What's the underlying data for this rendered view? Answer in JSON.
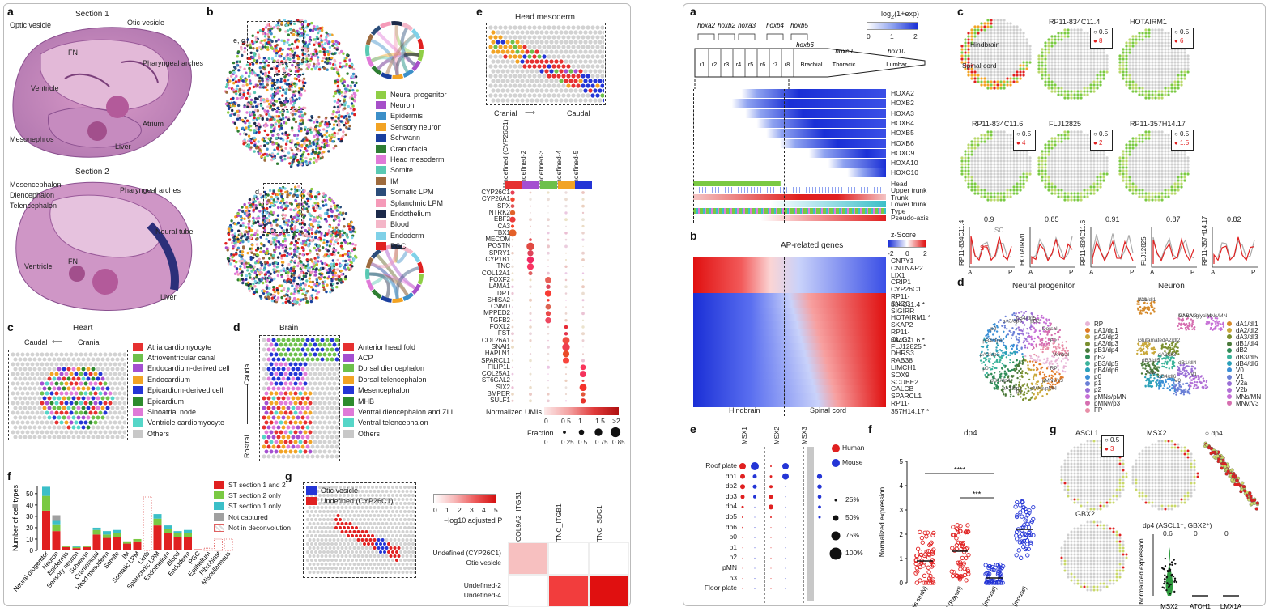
{
  "left_figure": {
    "panel_a": {
      "label": "a",
      "section1_title": "Section 1",
      "section1_labels": [
        "Optic vesicle",
        "Otic vesicle",
        "FN",
        "Pharyngeal arches",
        "Ventricle",
        "Atrium",
        "Mesonephros",
        "Liver"
      ],
      "section2_title": "Section 2",
      "section2_labels": [
        "Mesencephalon",
        "Diencephalon",
        "Telencephalon",
        "Pharyngeal arches",
        "FN",
        "Ventricle",
        "Neural tube",
        "Liver"
      ]
    },
    "panel_b": {
      "label": "b",
      "box_label_1": "e, g",
      "box_label_2": "c",
      "box_label_3": "d",
      "legend": [
        {
          "name": "Neural progenitor",
          "color": "#8fce45"
        },
        {
          "name": "Neuron",
          "color": "#a64fc9"
        },
        {
          "name": "Epidermis",
          "color": "#3c8fc8"
        },
        {
          "name": "Sensory neuron",
          "color": "#f2a324"
        },
        {
          "name": "Schwann",
          "color": "#1a3f9e"
        },
        {
          "name": "Craniofacial",
          "color": "#2e7d32"
        },
        {
          "name": "Head mesoderm",
          "color": "#e07ad8"
        },
        {
          "name": "Somite",
          "color": "#59c9b3"
        },
        {
          "name": "IM",
          "color": "#9e6b3e"
        },
        {
          "name": "Somatic LPM",
          "color": "#2b4d7a"
        },
        {
          "name": "Splanchnic LPM",
          "color": "#f59ab8"
        },
        {
          "name": "Endothelium",
          "color": "#1c2a4a"
        },
        {
          "name": "Blood",
          "color": "#f4b6c8"
        },
        {
          "name": "Endoderm",
          "color": "#7fd1e8"
        },
        {
          "name": "PGC",
          "color": "#e02020"
        }
      ]
    },
    "panel_c": {
      "label": "c",
      "title": "Heart",
      "axis_left": "Caudal",
      "axis_right": "Cranial",
      "legend": [
        {
          "name": "Atria cardiomyocyte",
          "color": "#e63030"
        },
        {
          "name": "Atrioventricular canal",
          "color": "#6dc04b"
        },
        {
          "name": "Endocardium-derived cell",
          "color": "#a44fd0"
        },
        {
          "name": "Endocardium",
          "color": "#f2a324"
        },
        {
          "name": "Epicardium-derived cell",
          "color": "#2435d6"
        },
        {
          "name": "Epicardium",
          "color": "#2e8b2e"
        },
        {
          "name": "Sinoatrial node",
          "color": "#e07ad8"
        },
        {
          "name": "Ventricle cardiomyocyte",
          "color": "#56d6c8"
        },
        {
          "name": "Others",
          "color": "#c8c8c8"
        }
      ]
    },
    "panel_d": {
      "label": "d",
      "title": "Brain",
      "axis_top": "Caudal",
      "axis_bottom": "Rostral",
      "legend": [
        {
          "name": "Anterior head fold",
          "color": "#e63030"
        },
        {
          "name": "ACP",
          "color": "#a44fd0"
        },
        {
          "name": "Dorsal diencephalon",
          "color": "#6dc04b"
        },
        {
          "name": "Dorsal telencephalon",
          "color": "#f2a324"
        },
        {
          "name": "Mesencephalon",
          "color": "#2435d6"
        },
        {
          "name": "MHB",
          "color": "#2e8b2e"
        },
        {
          "name": "Ventral diencephalon and ZLI",
          "color": "#e07ad8"
        },
        {
          "name": "Ventral telencephalon",
          "color": "#56d6c8"
        },
        {
          "name": "Others",
          "color": "#c8c8c8"
        }
      ]
    },
    "panel_e": {
      "label": "e",
      "title": "Head mesoderm",
      "axis_left": "Cranial",
      "axis_right": "Caudal",
      "columns": [
        "Undefined (CYP26C1)",
        "Undefined-2",
        "Undefined-3",
        "Undefined-4",
        "Undefined-5"
      ],
      "column_colors": [
        "#e63030",
        "#a44fd0",
        "#6dc04b",
        "#f2a324",
        "#2435d6"
      ],
      "genes": [
        "CYP26C1",
        "CYP26A1",
        "SPX",
        "NTRK2",
        "EBF2",
        "CA3",
        "TBX1",
        "MECOM",
        "POSTN",
        "SPRY1",
        "CYP1B1",
        "TNC",
        "COL12A1",
        "FOXF2",
        "LAMA1",
        "DPT",
        "SHISA2",
        "CNMD",
        "MPPED2",
        "TGFB2",
        "FOXL2",
        "FST",
        "COL26A1",
        "SNAI1",
        "HAPLN1",
        "SPARCL1",
        "FILIP1L",
        "COL25A1",
        "ST6GAL2",
        "SIX2",
        "BMPER",
        "SULF1"
      ],
      "umi_title": "Normalized UMIs",
      "umi_ticks": [
        "0",
        "0.5",
        "1",
        "1.5",
        ">2"
      ],
      "fraction_title": "Fraction",
      "fraction_ticks": [
        "0",
        "0.25",
        "0.5",
        "0.75",
        "0.85"
      ]
    },
    "panel_f": {
      "label": "f",
      "ylabel": "Number of cell types",
      "categories": [
        "Neural progenitor",
        "Neuron",
        "Epidermis",
        "Sensory neuron",
        "Schwann",
        "Craniofacial",
        "Head mesoderm",
        "Somite",
        "IM",
        "Somatic LPM",
        "Limb",
        "Splanchnic LPM",
        "Endothelium",
        "Blood",
        "Endoderm",
        "PGC",
        "Epithelium",
        "Fibroblast",
        "Miscellaneous"
      ],
      "legend": [
        {
          "name": "ST section 1 and 2",
          "color": "#e02020"
        },
        {
          "name": "ST section 2 only",
          "color": "#7ac943"
        },
        {
          "name": "ST section 1 only",
          "color": "#3bbfc8"
        },
        {
          "name": "Not captured",
          "color": "#a0a0a0"
        },
        {
          "name": "Not in deconvolution",
          "color": "hatch"
        }
      ],
      "yticks": [
        "0",
        "10",
        "20",
        "30",
        "40",
        "50"
      ]
    },
    "panel_g": {
      "label": "g",
      "legend": [
        {
          "name": "Otic vesicle",
          "color": "#2435d6"
        },
        {
          "name": "Undefined (CYP26C1)",
          "color": "#e02020"
        }
      ],
      "scale_title": "−log10 adjusted P",
      "scale_ticks": [
        "0",
        "1",
        "2",
        "3",
        "4",
        "5"
      ],
      "columns": [
        "COL9A2_ITGB1",
        "TNC_ITGB1",
        "TNC_SDC1"
      ],
      "rows_top": [
        "Undefined (CYP26C1)",
        "Otic vesicle"
      ],
      "rows_bottom": [
        "Undefined-2",
        "Undefined-4"
      ]
    }
  },
  "right_figure": {
    "panel_a": {
      "label": "a",
      "scale_title": "log2(1+exp)",
      "scale_ticks": [
        "0",
        "1",
        "2"
      ],
      "hox_labels_top": [
        "hoxa2",
        "hoxb2",
        "hoxa3",
        "hoxb4",
        "hoxb5"
      ],
      "hox_labels_mid": [
        "hoxb6",
        "hoxc9",
        "hox10"
      ],
      "segments": [
        "r1",
        "r2",
        "r3",
        "r4",
        "r5",
        "r6",
        "r7",
        "r8"
      ],
      "regions": [
        "Brachial",
        "Thoracic",
        "Lumbar"
      ],
      "genes": [
        "HOXA2",
        "HOXB2",
        "HOXA3",
        "HOXB4",
        "HOXB5",
        "HOXB6",
        "HOXC9",
        "HOXA10",
        "HOXC10"
      ],
      "annotation_rows": [
        "Head",
        "Upper trunk",
        "Trunk",
        "Lower trunk",
        "Type",
        "Pseudo-axis"
      ]
    },
    "panel_b": {
      "label": "b",
      "title": "AP-related genes",
      "scale_title": "z-Score",
      "scale_ticks": [
        "-2",
        "0",
        "2"
      ],
      "genes": [
        "CNPY1",
        "CNTNAP2",
        "LIX1",
        "CRIP1",
        "CYP26C1",
        "RP11-834C11.4",
        "SNCG",
        "SIGIRR",
        "HOTAIRM1",
        "SKAP2",
        "RP11-834C11.6",
        "OLIG2",
        "FLJ12825",
        "DHRS3",
        "RAB38",
        "LIMCH1",
        "SOX9",
        "SCUBE2",
        "CALCB",
        "SPARCL1",
        "RP11-357H14.17"
      ],
      "starred": [
        "RP11-834C11.4",
        "HOTAIRM1",
        "RP11-834C11.6",
        "FLJ12825",
        "RP11-357H14.17"
      ],
      "axis_left": "Hindbrain",
      "axis_right": "Spinal cord"
    },
    "panel_c": {
      "label": "c",
      "annot_hindbrain": "Hindbrain",
      "annot_spinal": "Spinal cord",
      "maps": [
        {
          "gene": "RP11-834C11.4",
          "low": "0.5",
          "high": "8"
        },
        {
          "gene": "HOTAIRM1",
          "low": "0.5",
          "high": "6"
        },
        {
          "gene": "RP11-834C11.6",
          "low": "0.5",
          "high": "4"
        },
        {
          "gene": "FLJ12825",
          "low": "0.5",
          "high": "2"
        },
        {
          "gene": "RP11-357H14.17",
          "low": "0.5",
          "high": "1.5"
        }
      ],
      "curves": [
        {
          "gene": "RP11-834C11.4",
          "r": "0.9"
        },
        {
          "gene": "HOTAIRM1",
          "r": "0.85"
        },
        {
          "gene": "RP11-834C11.6",
          "r": "0.91"
        },
        {
          "gene": "FLJ12825",
          "r": "0.87"
        },
        {
          "gene": "RP11-357H14.17",
          "r": "0.82"
        }
      ],
      "curve_sc": "SC",
      "curve_st": "ST",
      "axis_a": "A",
      "axis_p": "P"
    },
    "panel_d": {
      "label": "d",
      "title_left": "Neural progenitor",
      "title_right": "Neuron",
      "umap_labels_left": [
        "Ventral",
        "RP",
        "pMNv/p3",
        "pMNs/pMN",
        "p1",
        "pA1/dp1",
        "pB1/dp4",
        "p0",
        "pA2/dp2",
        "pB4/dp6",
        "p2",
        "pA3/dp3",
        "pB4/dp5",
        "pB2",
        "Dorsal",
        "FP"
      ],
      "umap_labels_right": [
        "dA1/dI1",
        "MNv/V3",
        "MNs/MN",
        "Glutamate",
        "dA2/dI2",
        "dA3/dI3",
        "dB3/dI5",
        "dB1/dI4",
        "V2a",
        "dB4/dI6",
        "V0",
        "V1",
        "V2b",
        "GABA, glycine"
      ],
      "legend_left": [
        {
          "name": "RP",
          "color": "#e8b4d6"
        },
        {
          "name": "pA1/dp1",
          "color": "#e07a28"
        },
        {
          "name": "pA2/dp2",
          "color": "#c9a83a"
        },
        {
          "name": "pA3/dp3",
          "color": "#7a8f2e"
        },
        {
          "name": "pB1/dp4",
          "color": "#4a7a3a"
        },
        {
          "name": "pB2",
          "color": "#2e8b57"
        },
        {
          "name": "pB3/dp5",
          "color": "#3bb39b"
        },
        {
          "name": "pB4/dp6",
          "color": "#2aa0b8"
        },
        {
          "name": "p0",
          "color": "#3b8fd6"
        },
        {
          "name": "p1",
          "color": "#6a7fd6"
        },
        {
          "name": "p2",
          "color": "#9a6fd6"
        },
        {
          "name": "pMNs/pMN",
          "color": "#c66fd6"
        },
        {
          "name": "pMNv/p3",
          "color": "#d66fb0"
        },
        {
          "name": "FP",
          "color": "#e88fa8"
        }
      ],
      "legend_right": [
        {
          "name": "dA1/dI1",
          "color": "#d68a2a"
        },
        {
          "name": "dA2/dI2",
          "color": "#c9a83a"
        },
        {
          "name": "dA3/dI3",
          "color": "#7a8f2e"
        },
        {
          "name": "dB1/dI4",
          "color": "#4a7a3a"
        },
        {
          "name": "dB2",
          "color": "#2e8b57"
        },
        {
          "name": "dB3/dI5",
          "color": "#3bb39b"
        },
        {
          "name": "dB4/dI6",
          "color": "#2aa0b8"
        },
        {
          "name": "V0",
          "color": "#3b8fd6"
        },
        {
          "name": "V1",
          "color": "#6a7fd6"
        },
        {
          "name": "V2a",
          "color": "#9a6fd6"
        },
        {
          "name": "V2b",
          "color": "#b06fd6"
        },
        {
          "name": "MNs/MN",
          "color": "#c66fd6"
        },
        {
          "name": "MNv/V3",
          "color": "#d66fb0"
        }
      ]
    },
    "panel_e": {
      "label": "e",
      "columns": [
        "MSX1",
        "MSX2",
        "MSX3"
      ],
      "rows": [
        "Roof plate",
        "dp1",
        "dp2",
        "dp3",
        "dp4",
        "dp5",
        "dp6",
        "p0",
        "p1",
        "p2",
        "pMN",
        "p3",
        "Floor plate"
      ],
      "legend_species": [
        {
          "name": "Human",
          "color": "#e02020"
        },
        {
          "name": "Mouse",
          "color": "#2435d6"
        }
      ],
      "legend_sizes": [
        "25%",
        "50%",
        "75%",
        "100%"
      ]
    },
    "panel_f": {
      "label": "f",
      "title": "dp4",
      "ylabel": "Normalized expression",
      "yticks": [
        "0",
        "1",
        "2",
        "3",
        "4",
        "5"
      ],
      "categories": [
        "MSX2 (this study)",
        "MSX2 (Rayon)",
        "Msx2 (mouse)",
        "Msx3 (mouse)"
      ],
      "sig1": "****",
      "sig2": "***"
    },
    "panel_g": {
      "label": "g",
      "maps": [
        "ASCL1",
        "MSX2",
        "GBX2"
      ],
      "legend_low": "0.5",
      "legend_high": "3",
      "inset_label": "dp4",
      "violin_title": "dp4 (ASCL1⁺, GBX2⁺)",
      "violin_ylabel": "Normalized expression",
      "violin_cats": [
        "MSX2",
        "ATOH1",
        "LMX1A"
      ],
      "violin_vals": [
        "0.6",
        "0",
        "0"
      ]
    }
  }
}
